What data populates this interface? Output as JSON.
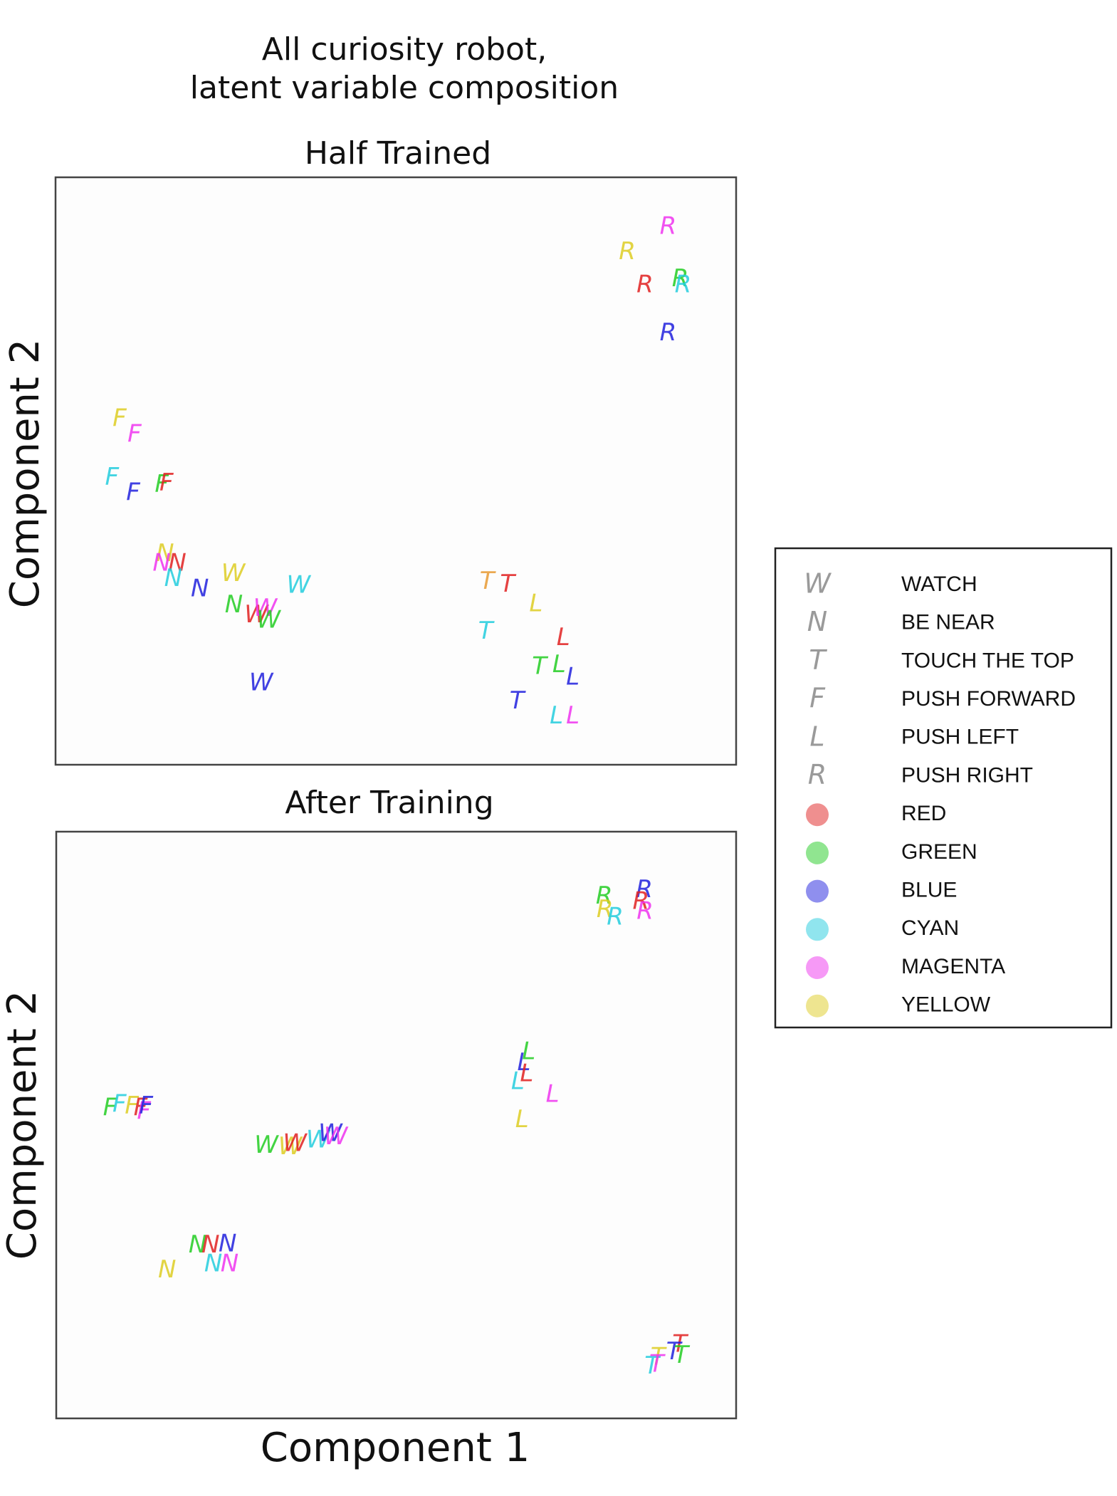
{
  "chart_data": {
    "type": "scatter",
    "title": "All curiosity robot,\nlatent variable composition",
    "xlabel": "Component 1",
    "ylabel": "Component 2",
    "colors": {
      "RED": "#e02020",
      "GREEN": "#22cc22",
      "BLUE": "#2020dd",
      "CYAN": "#22ccdd",
      "MAGENTA": "#ee33ee",
      "YELLOW": "#ddcc22"
    },
    "legend": {
      "symbols": [
        {
          "marker": "W",
          "label": "WATCH"
        },
        {
          "marker": "N",
          "label": "BE NEAR"
        },
        {
          "marker": "T",
          "label": "TOUCH THE TOP"
        },
        {
          "marker": "F",
          "label": "PUSH FORWARD"
        },
        {
          "marker": "L",
          "label": "PUSH LEFT"
        },
        {
          "marker": "R",
          "label": "PUSH RIGHT"
        }
      ],
      "colors": [
        {
          "color": "RED",
          "label": "RED"
        },
        {
          "color": "GREEN",
          "label": "GREEN"
        },
        {
          "color": "BLUE",
          "label": "BLUE"
        },
        {
          "color": "CYAN",
          "label": "CYAN"
        },
        {
          "color": "MAGENTA",
          "label": "MAGENTA"
        },
        {
          "color": "YELLOW",
          "label": "YELLOW"
        }
      ],
      "position": "right"
    },
    "panels": [
      {
        "title": "Half Trained",
        "xlim": [
          0,
          100
        ],
        "ylim": [
          0,
          100
        ],
        "points": [
          {
            "m": "R",
            "c": "MAGENTA",
            "x": 90.0,
            "y": 91.5
          },
          {
            "m": "R",
            "c": "YELLOW",
            "x": 84.0,
            "y": 87.2
          },
          {
            "m": "R",
            "c": "RED",
            "x": 86.6,
            "y": 81.6
          },
          {
            "m": "R",
            "c": "GREEN",
            "x": 91.8,
            "y": 82.6
          },
          {
            "m": "R",
            "c": "CYAN",
            "x": 92.2,
            "y": 81.6
          },
          {
            "m": "R",
            "c": "BLUE",
            "x": 90.0,
            "y": 73.4
          },
          {
            "m": "F",
            "c": "YELLOW",
            "x": 9.4,
            "y": 58.8
          },
          {
            "m": "F",
            "c": "MAGENTA",
            "x": 11.6,
            "y": 56.1
          },
          {
            "m": "F",
            "c": "CYAN",
            "x": 8.3,
            "y": 48.8
          },
          {
            "m": "F",
            "c": "BLUE",
            "x": 11.4,
            "y": 46.2
          },
          {
            "m": "F",
            "c": "GREEN",
            "x": 15.6,
            "y": 47.6
          },
          {
            "m": "F",
            "c": "RED",
            "x": 16.3,
            "y": 47.8
          },
          {
            "m": "N",
            "c": "YELLOW",
            "x": 16.1,
            "y": 35.8
          },
          {
            "m": "N",
            "c": "MAGENTA",
            "x": 15.6,
            "y": 34.2
          },
          {
            "m": "N",
            "c": "RED",
            "x": 17.9,
            "y": 34.2
          },
          {
            "m": "N",
            "c": "CYAN",
            "x": 17.3,
            "y": 31.6
          },
          {
            "m": "N",
            "c": "BLUE",
            "x": 21.2,
            "y": 29.8
          },
          {
            "m": "N",
            "c": "GREEN",
            "x": 26.2,
            "y": 27.1
          },
          {
            "m": "W",
            "c": "YELLOW",
            "x": 26.1,
            "y": 32.4
          },
          {
            "m": "W",
            "c": "CYAN",
            "x": 35.7,
            "y": 30.4
          },
          {
            "m": "W",
            "c": "RED",
            "x": 29.5,
            "y": 25.4
          },
          {
            "m": "W",
            "c": "MAGENTA",
            "x": 30.8,
            "y": 26.5
          },
          {
            "m": "W",
            "c": "GREEN",
            "x": 31.3,
            "y": 24.5
          },
          {
            "m": "W",
            "c": "BLUE",
            "x": 30.2,
            "y": 13.8
          },
          {
            "m": "T",
            "c": "ORANGE",
            "x": 63.4,
            "y": 31.1
          },
          {
            "m": "T",
            "c": "RED",
            "x": 66.4,
            "y": 30.6
          },
          {
            "m": "T",
            "c": "CYAN",
            "x": 63.2,
            "y": 22.6
          },
          {
            "m": "T",
            "c": "GREEN",
            "x": 71.1,
            "y": 16.6
          },
          {
            "m": "T",
            "c": "BLUE",
            "x": 67.8,
            "y": 10.7
          },
          {
            "m": "L",
            "c": "YELLOW",
            "x": 70.6,
            "y": 27.3
          },
          {
            "m": "L",
            "c": "RED",
            "x": 74.6,
            "y": 21.5
          },
          {
            "m": "L",
            "c": "GREEN",
            "x": 74.0,
            "y": 16.9
          },
          {
            "m": "L",
            "c": "BLUE",
            "x": 76.0,
            "y": 14.8
          },
          {
            "m": "L",
            "c": "CYAN",
            "x": 73.6,
            "y": 8.2
          },
          {
            "m": "L",
            "c": "MAGENTA",
            "x": 76.0,
            "y": 8.2
          }
        ]
      },
      {
        "title": "After Training",
        "xlim": [
          0,
          100
        ],
        "ylim": [
          0,
          100
        ],
        "points": [
          {
            "m": "R",
            "c": "BLUE",
            "x": 86.5,
            "y": 90.0
          },
          {
            "m": "R",
            "c": "GREEN",
            "x": 80.6,
            "y": 88.9
          },
          {
            "m": "R",
            "c": "RED",
            "x": 86.0,
            "y": 88.0
          },
          {
            "m": "R",
            "c": "YELLOW",
            "x": 80.7,
            "y": 86.6
          },
          {
            "m": "R",
            "c": "CYAN",
            "x": 82.2,
            "y": 85.3
          },
          {
            "m": "R",
            "c": "MAGENTA",
            "x": 86.6,
            "y": 86.3
          },
          {
            "m": "L",
            "c": "GREEN",
            "x": 69.5,
            "y": 62.4
          },
          {
            "m": "L",
            "c": "BLUE",
            "x": 68.8,
            "y": 60.5
          },
          {
            "m": "L",
            "c": "RED",
            "x": 69.2,
            "y": 58.6
          },
          {
            "m": "L",
            "c": "CYAN",
            "x": 67.9,
            "y": 57.3
          },
          {
            "m": "L",
            "c": "MAGENTA",
            "x": 73.0,
            "y": 55.1
          },
          {
            "m": "L",
            "c": "YELLOW",
            "x": 68.5,
            "y": 50.8
          },
          {
            "m": "F",
            "c": "GREEN",
            "x": 7.9,
            "y": 52.8
          },
          {
            "m": "F",
            "c": "CYAN",
            "x": 9.3,
            "y": 53.4
          },
          {
            "m": "F",
            "c": "YELLOW",
            "x": 11.1,
            "y": 53.1
          },
          {
            "m": "F",
            "c": "RED",
            "x": 12.4,
            "y": 52.8
          },
          {
            "m": "F",
            "c": "MAGENTA",
            "x": 12.9,
            "y": 52.2
          },
          {
            "m": "F",
            "c": "BLUE",
            "x": 13.2,
            "y": 53.1
          },
          {
            "m": "W",
            "c": "GREEN",
            "x": 30.9,
            "y": 46.4
          },
          {
            "m": "W",
            "c": "YELLOW",
            "x": 34.4,
            "y": 46.2
          },
          {
            "m": "W",
            "c": "RED",
            "x": 35.1,
            "y": 46.7
          },
          {
            "m": "W",
            "c": "CYAN",
            "x": 38.5,
            "y": 47.3
          },
          {
            "m": "W",
            "c": "BLUE",
            "x": 40.3,
            "y": 48.4
          },
          {
            "m": "W",
            "c": "MAGENTA",
            "x": 41.1,
            "y": 47.9
          },
          {
            "m": "N",
            "c": "GREEN",
            "x": 20.8,
            "y": 29.4
          },
          {
            "m": "N",
            "c": "RED",
            "x": 22.7,
            "y": 29.4
          },
          {
            "m": "N",
            "c": "BLUE",
            "x": 25.2,
            "y": 29.6
          },
          {
            "m": "N",
            "c": "CYAN",
            "x": 23.1,
            "y": 26.2
          },
          {
            "m": "N",
            "c": "MAGENTA",
            "x": 25.5,
            "y": 26.2
          },
          {
            "m": "N",
            "c": "YELLOW",
            "x": 16.3,
            "y": 25.2
          },
          {
            "m": "T",
            "c": "RED",
            "x": 91.7,
            "y": 12.5
          },
          {
            "m": "T",
            "c": "BLUE",
            "x": 90.8,
            "y": 11.2
          },
          {
            "m": "T",
            "c": "GREEN",
            "x": 91.9,
            "y": 10.6
          },
          {
            "m": "T",
            "c": "YELLOW",
            "x": 88.5,
            "y": 10.3
          },
          {
            "m": "T",
            "c": "CYAN",
            "x": 87.6,
            "y": 8.8
          },
          {
            "m": "T",
            "c": "MAGENTA",
            "x": 88.3,
            "y": 9.1
          }
        ]
      }
    ]
  },
  "extra_colors": {
    "ORANGE": "#e89a33",
    "legend_marker": "#9a9a9a",
    "legend_border": "#222222"
  }
}
